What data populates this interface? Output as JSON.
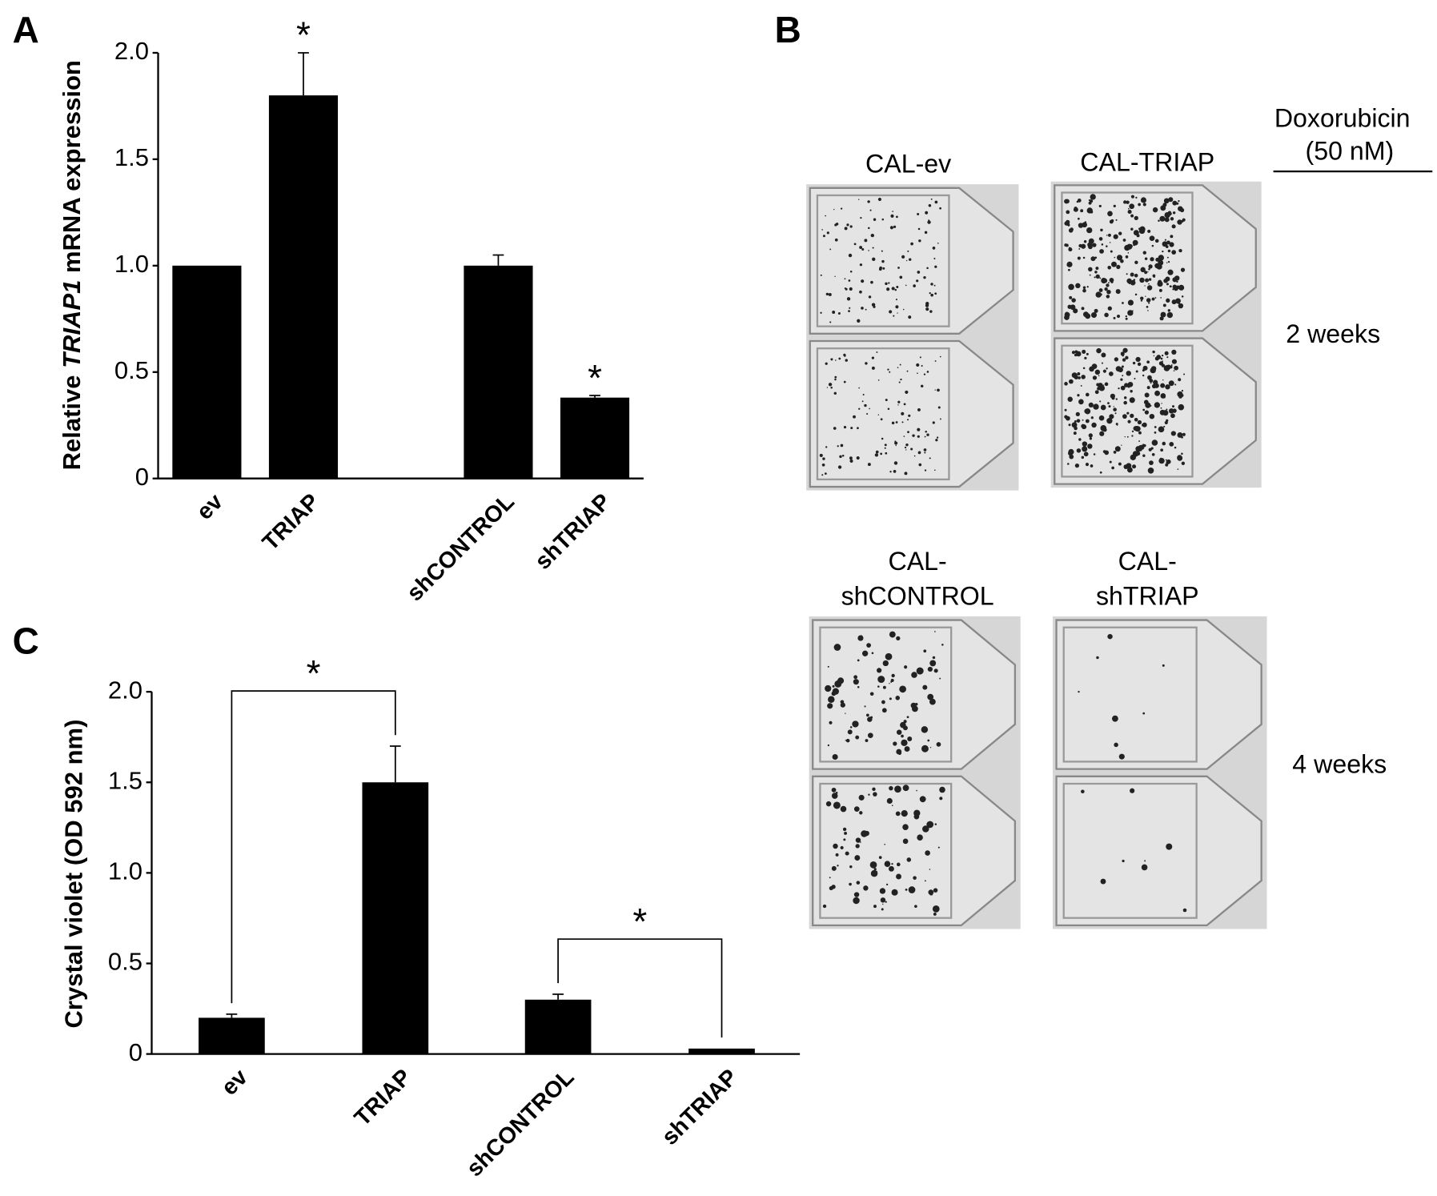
{
  "panel_labels": [
    "A",
    "B",
    "C"
  ],
  "chart_data": [
    {
      "type": "bar",
      "ylabel_parts": [
        "Relative ",
        "TRIAP1",
        " mRNA expression"
      ],
      "categories": [
        "ev",
        "TRIAP",
        "shCONTROL",
        "shTRIAP"
      ],
      "values": [
        1.0,
        1.8,
        1.0,
        0.38
      ],
      "errors": [
        0,
        0.2,
        0.05,
        0.01
      ],
      "significance": [
        null,
        "*",
        null,
        "*"
      ],
      "color": "#000000",
      "ylim": [
        0,
        2
      ],
      "yticks": [
        0,
        0.5,
        {
          "value": 1,
          "label": "1.0"
        },
        1.5,
        {
          "value": 2,
          "label": "2.0"
        }
      ]
    },
    {
      "type": "bar",
      "ylabel": "Crystal violet (OD 592 nm)",
      "categories": [
        "ev",
        "TRIAP",
        "shCONTROL",
        "shTRIAP"
      ],
      "values": [
        0.2,
        1.5,
        0.3,
        0.03
      ],
      "errors": [
        0.02,
        0.2,
        0.03,
        0
      ],
      "comparisons": [
        {
          "groups": [
            "ev",
            "TRIAP"
          ],
          "label": "*"
        },
        {
          "groups": [
            "shCONTROL",
            "shTRIAP"
          ],
          "label": "*"
        }
      ],
      "color": "#000000",
      "ylim": [
        0,
        2
      ],
      "yticks": [
        0,
        0.5,
        {
          "value": 1,
          "label": "1.0"
        },
        1.5,
        {
          "value": 2,
          "label": "2.0"
        }
      ]
    }
  ],
  "photo_panel": {
    "treatment": "Doxorubicin",
    "dose": "(50 nM)",
    "top_titles": [
      "CAL-ev",
      "CAL-TRIAP"
    ],
    "bottom_titles": [
      [
        "CAL-",
        "shCONTROL"
      ],
      [
        "CAL-",
        "shTRIAP"
      ]
    ],
    "rows": [
      "2 weeks",
      "4 weeks"
    ]
  }
}
